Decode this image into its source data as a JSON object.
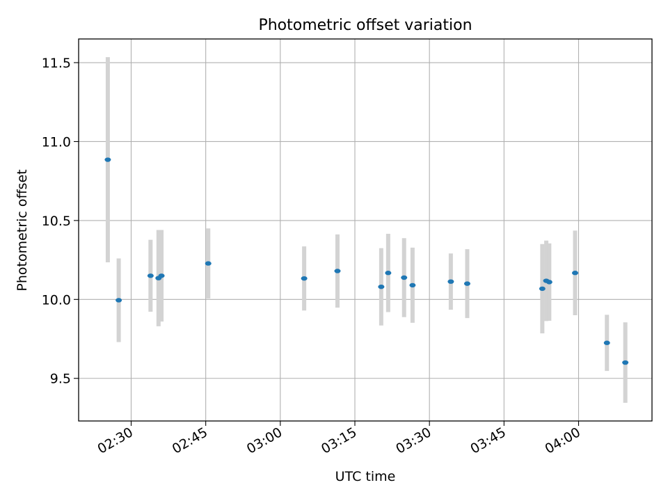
{
  "chart_data": {
    "type": "scatter",
    "title": "Photometric offset variation",
    "xlabel": "UTC time",
    "ylabel": "Photometric offset",
    "x_ticks": [
      "02:30",
      "02:45",
      "03:00",
      "03:15",
      "03:30",
      "03:45",
      "04:00"
    ],
    "y_ticks": [
      "9.5",
      "10.0",
      "10.5",
      "11.0",
      "11.5"
    ],
    "xlim": [
      "02:19:26",
      "04:14:46"
    ],
    "ylim": [
      9.23,
      11.65
    ],
    "grid": true,
    "colors": {
      "marker": "#1f77b4",
      "errorbar": "#d3d3d3",
      "grid": "#b0b0b0"
    },
    "points": [
      {
        "time": "02:25:18",
        "value": 10.885,
        "error": 0.65
      },
      {
        "time": "02:27:30",
        "value": 9.995,
        "error": 0.265
      },
      {
        "time": "02:33:54",
        "value": 10.15,
        "error": 0.228
      },
      {
        "time": "02:35:30",
        "value": 10.135,
        "error": 0.305
      },
      {
        "time": "02:36:06",
        "value": 10.15,
        "error": 0.29
      },
      {
        "time": "02:45:30",
        "value": 10.228,
        "error": 0.222
      },
      {
        "time": "03:04:48",
        "value": 10.133,
        "error": 0.203
      },
      {
        "time": "03:11:30",
        "value": 10.18,
        "error": 0.232
      },
      {
        "time": "03:20:18",
        "value": 10.08,
        "error": 0.245
      },
      {
        "time": "03:21:42",
        "value": 10.168,
        "error": 0.248
      },
      {
        "time": "03:24:54",
        "value": 10.138,
        "error": 0.25
      },
      {
        "time": "03:26:36",
        "value": 10.09,
        "error": 0.238
      },
      {
        "time": "03:34:18",
        "value": 10.113,
        "error": 0.178
      },
      {
        "time": "03:37:36",
        "value": 10.1,
        "error": 0.218
      },
      {
        "time": "03:52:42",
        "value": 10.068,
        "error": 0.283
      },
      {
        "time": "03:53:30",
        "value": 10.118,
        "error": 0.255
      },
      {
        "time": "03:54:06",
        "value": 10.11,
        "error": 0.245
      },
      {
        "time": "03:59:18",
        "value": 10.168,
        "error": 0.268
      },
      {
        "time": "04:05:42",
        "value": 9.725,
        "error": 0.178
      },
      {
        "time": "04:09:24",
        "value": 9.6,
        "error": 0.255
      }
    ]
  }
}
